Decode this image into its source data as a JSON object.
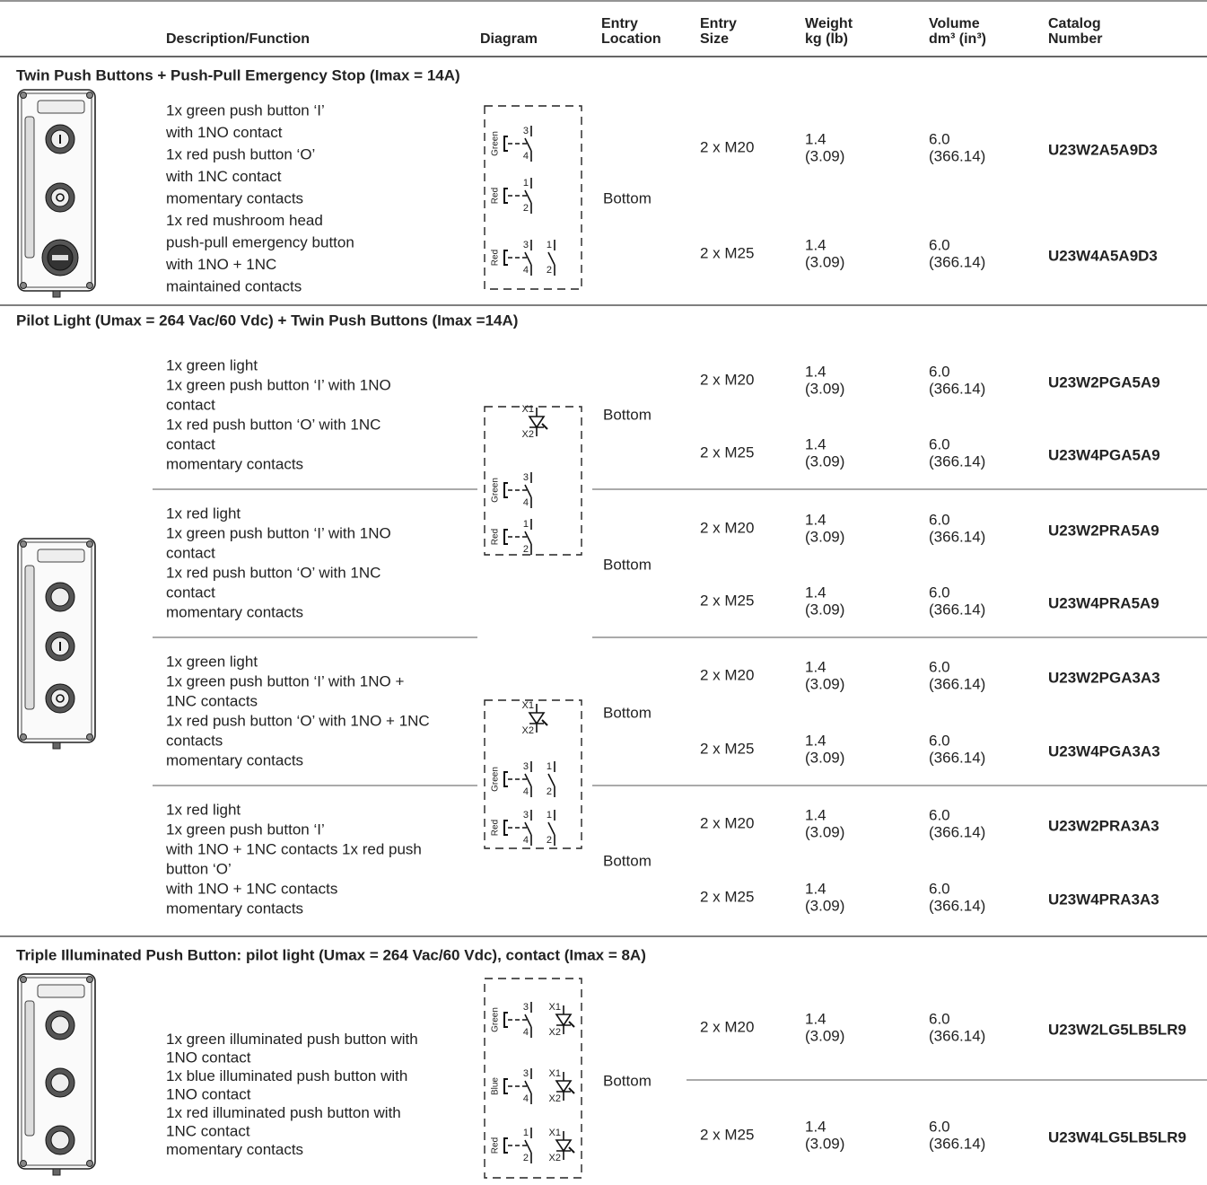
{
  "header": {
    "columns": [
      [
        "Description/Function"
      ],
      [
        "Diagram"
      ],
      [
        "Entry",
        "Location"
      ],
      [
        "Entry",
        "Size"
      ],
      [
        "Weight",
        "kg (lb)"
      ],
      [
        "Volume",
        "dm³ (in³)"
      ],
      [
        "Catalog",
        "Number"
      ]
    ]
  },
  "sections": [
    {
      "title": "Twin Push Buttons + Push-Pull Emergency Stop (Imax = 14A)",
      "diagrams": [
        {
          "rows": [
            {
              "label": "Green",
              "terminals": [
                "3",
                "4"
              ]
            },
            {
              "label": "Red",
              "terminals": [
                "1",
                "2"
              ]
            },
            {
              "label": "Red",
              "terminals": [
                "3",
                "4",
                "1",
                "2"
              ]
            }
          ]
        }
      ],
      "groups": [
        {
          "description": [
            "1x green push button ‘I’",
            "with 1NO contact",
            "1x red push button ‘O’",
            "with 1NC contact",
            "momentary contacts",
            "1x red mushroom head",
            "push-pull emergency button",
            "with 1NO + 1NC",
            "maintained contacts"
          ],
          "location": "Bottom",
          "variants": [
            {
              "size": "2 x M20",
              "weight": [
                "1.4",
                "(3.09)"
              ],
              "volume": [
                "6.0",
                "(366.14)"
              ],
              "catalog": "U23W2A5A9D3"
            },
            {
              "size": "2 x M25",
              "weight": [
                "1.4",
                "(3.09)"
              ],
              "volume": [
                "6.0",
                "(366.14)"
              ],
              "catalog": "U23W4A5A9D3"
            }
          ]
        }
      ]
    },
    {
      "title": "Pilot Light (Umax = 264 Vac/60 Vdc) + Twin Push Buttons (Imax =14A)",
      "diagrams": [
        {
          "rows": [
            {
              "terminals": [
                "X1",
                "X2"
              ]
            },
            {
              "label": "Green",
              "terminals": [
                "3",
                "4"
              ]
            },
            {
              "label": "Red",
              "terminals": [
                "1",
                "2"
              ]
            }
          ]
        },
        {
          "rows": [
            {
              "terminals": [
                "X1",
                "X2"
              ]
            },
            {
              "label": "Green",
              "terminals": [
                "3",
                "4",
                "1",
                "2"
              ]
            },
            {
              "label": "Red",
              "terminals": [
                "3",
                "4",
                "1",
                "2"
              ]
            }
          ]
        }
      ],
      "groups": [
        {
          "description": [
            "1x green light",
            "1x green push button ‘I’ with 1NO",
            "contact",
            "1x red push button ‘O’ with 1NC",
            "contact",
            "momentary contacts"
          ],
          "location": "Bottom",
          "variants": [
            {
              "size": "2 x M20",
              "weight": [
                "1.4",
                "(3.09)"
              ],
              "volume": [
                "6.0",
                "(366.14)"
              ],
              "catalog": "U23W2PGA5A9"
            },
            {
              "size": "2 x M25",
              "weight": [
                "1.4",
                "(3.09)"
              ],
              "volume": [
                "6.0",
                "(366.14)"
              ],
              "catalog": "U23W4PGA5A9"
            }
          ]
        },
        {
          "description": [
            "1x red light",
            "1x green push button ‘I’ with 1NO",
            "contact",
            "1x red push button ‘O’ with 1NC",
            "contact",
            "momentary contacts"
          ],
          "location": "Bottom",
          "variants": [
            {
              "size": "2 x M20",
              "weight": [
                "1.4",
                "(3.09)"
              ],
              "volume": [
                "6.0",
                "(366.14)"
              ],
              "catalog": "U23W2PRA5A9"
            },
            {
              "size": "2 x M25",
              "weight": [
                "1.4",
                "(3.09)"
              ],
              "volume": [
                "6.0",
                "(366.14)"
              ],
              "catalog": "U23W4PRA5A9"
            }
          ]
        },
        {
          "description": [
            "1x green light",
            "1x green push button ‘I’ with 1NO +",
            "1NC contacts",
            "1x red push button ‘O’ with 1NO + 1NC",
            "contacts",
            "momentary contacts"
          ],
          "location": "Bottom",
          "variants": [
            {
              "size": "2 x M20",
              "weight": [
                "1.4",
                "(3.09)"
              ],
              "volume": [
                "6.0",
                "(366.14)"
              ],
              "catalog": "U23W2PGA3A3"
            },
            {
              "size": "2 x M25",
              "weight": [
                "1.4",
                "(3.09)"
              ],
              "volume": [
                "6.0",
                "(366.14)"
              ],
              "catalog": "U23W4PGA3A3"
            }
          ]
        },
        {
          "description": [
            "1x red light",
            "1x green push button ‘I’",
            "with 1NO + 1NC contacts 1x red push",
            "button ‘O’",
            "with 1NO + 1NC contacts",
            "momentary contacts"
          ],
          "location": "Bottom",
          "variants": [
            {
              "size": "2 x M20",
              "weight": [
                "1.4",
                "(3.09)"
              ],
              "volume": [
                "6.0",
                "(366.14)"
              ],
              "catalog": "U23W2PRA3A3"
            },
            {
              "size": "2 x M25",
              "weight": [
                "1.4",
                "(3.09)"
              ],
              "volume": [
                "6.0",
                "(366.14)"
              ],
              "catalog": "U23W4PRA3A3"
            }
          ]
        }
      ]
    },
    {
      "title": "Triple Illuminated Push Button: pilot light (Umax = 264 Vac/60 Vdc), contact (Imax = 8A)",
      "diagrams": [
        {
          "rows": [
            {
              "label": "Green",
              "terminals": [
                "3",
                "4",
                "X1",
                "X2"
              ]
            },
            {
              "label": "Blue",
              "terminals": [
                "3",
                "4",
                "X1",
                "X2"
              ]
            },
            {
              "label": "Red",
              "terminals": [
                "1",
                "2",
                "X1",
                "X2"
              ]
            }
          ]
        }
      ],
      "groups": [
        {
          "description": [
            "1x green illuminated push button with",
            "1NO contact",
            "1x blue illuminated push button with",
            "1NO contact",
            "1x red illuminated push button with",
            "1NC contact",
            "momentary contacts"
          ],
          "location": "Bottom",
          "variants": [
            {
              "size": "2 x M20",
              "weight": [
                "1.4",
                "(3.09)"
              ],
              "volume": [
                "6.0",
                "(366.14)"
              ],
              "catalog": "U23W2LG5LB5LR9"
            },
            {
              "size": "2 x M25",
              "weight": [
                "1.4",
                "(3.09)"
              ],
              "volume": [
                "6.0",
                "(366.14)"
              ],
              "catalog": "U23W4LG5LB5LR9"
            }
          ]
        }
      ]
    }
  ]
}
